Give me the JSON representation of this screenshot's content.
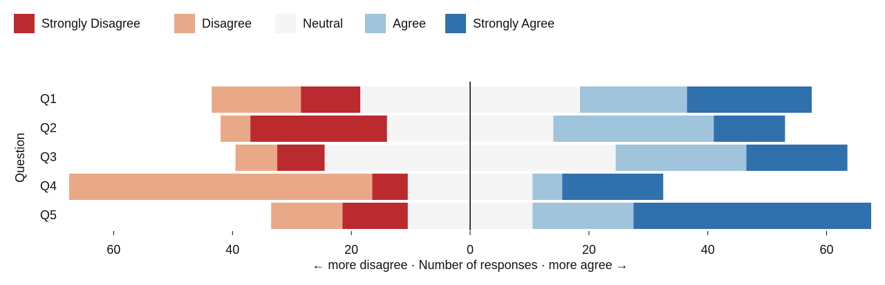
{
  "chart_data": {
    "type": "diverging-bar",
    "categories": [
      "Q1",
      "Q2",
      "Q3",
      "Q4",
      "Q5"
    ],
    "series": [
      {
        "name": "Strongly Disagree",
        "color": "#bb2a2f",
        "side": "negative",
        "values": [
          10,
          23,
          8,
          6,
          11
        ]
      },
      {
        "name": "Disagree",
        "color": "#e9a988",
        "side": "negative",
        "values": [
          15,
          5,
          7,
          51,
          12
        ]
      },
      {
        "name": "Neutral",
        "color": "#f5f5f5",
        "side": "center",
        "values": [
          37,
          28,
          49,
          21,
          21
        ]
      },
      {
        "name": "Agree",
        "color": "#9fc4dc",
        "side": "positive",
        "values": [
          18,
          27,
          22,
          5,
          17
        ]
      },
      {
        "name": "Strongly Agree",
        "color": "#3070ad",
        "side": "positive",
        "values": [
          21,
          12,
          17,
          17,
          40
        ]
      }
    ],
    "xlim": [
      -67.5,
      67.5
    ],
    "xticks": [
      {
        "value": -60,
        "label": "60"
      },
      {
        "value": -40,
        "label": "40"
      },
      {
        "value": -20,
        "label": "20"
      },
      0,
      20,
      40,
      60
    ],
    "xlabel": "← more disagree · Number of responses · more agree →",
    "ylabel": "Question"
  }
}
